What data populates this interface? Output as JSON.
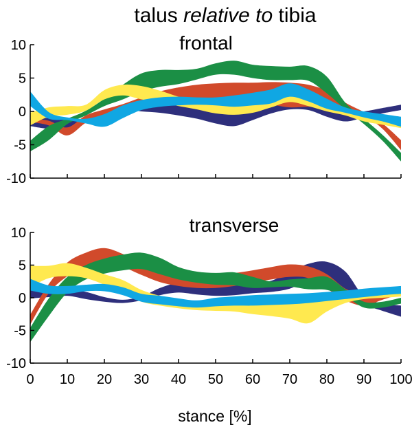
{
  "title": {
    "prefix": "talus ",
    "italic": "relative to",
    "suffix": " tibia"
  },
  "colors": {
    "navy": "#2e2f7c",
    "red": "#d14a2b",
    "green": "#1b8f45",
    "yellow": "#ffe94f",
    "cyan": "#10a7e3"
  },
  "chart_data": [
    {
      "type": "area",
      "title": "frontal",
      "xlabel": "",
      "ylabel": "",
      "xlim": [
        0,
        100
      ],
      "ylim": [
        -10,
        10
      ],
      "x_ticks": [
        0,
        10,
        20,
        30,
        40,
        50,
        60,
        70,
        80,
        90,
        100
      ],
      "y_ticks": [
        10,
        5,
        0,
        -5,
        -10
      ],
      "y_tick_labels": [
        "10",
        "5",
        "0",
        "-5",
        "-10"
      ],
      "grid": false,
      "x": [
        0,
        5,
        10,
        15,
        20,
        25,
        30,
        35,
        40,
        45,
        50,
        55,
        60,
        65,
        70,
        75,
        80,
        85,
        90,
        95,
        100
      ],
      "series": [
        {
          "color": "navy",
          "upper": [
            -0.9,
            -1.0,
            -1.3,
            -1.4,
            0.0,
            0.6,
            0.5,
            1.1,
            1.6,
            1.7,
            1.9,
            2.1,
            2.3,
            2.4,
            2.4,
            2.0,
            0.7,
            -0.2,
            0.0,
            0.5,
            1.0
          ],
          "lower": [
            -2.2,
            -2.6,
            -2.5,
            -1.5,
            -0.6,
            0.3,
            0.0,
            -0.2,
            -0.6,
            -1.1,
            -1.8,
            -2.2,
            -1.3,
            -0.3,
            0.3,
            0.2,
            -0.8,
            -1.5,
            -0.9,
            -0.3,
            0.2
          ]
        },
        {
          "color": "red",
          "upper": [
            -1.1,
            -1.4,
            -2.4,
            -0.6,
            0.3,
            1.1,
            2.1,
            3.0,
            3.6,
            4.0,
            4.2,
            4.3,
            4.3,
            4.4,
            4.3,
            4.0,
            3.1,
            1.3,
            -0.1,
            -1.8,
            -4.3
          ],
          "lower": [
            -1.6,
            -2.1,
            -3.6,
            -1.7,
            -0.5,
            0.3,
            1.2,
            1.7,
            1.5,
            1.6,
            1.6,
            1.5,
            1.2,
            1.0,
            0.6,
            0.7,
            0.6,
            0.1,
            -0.7,
            -2.6,
            -5.8
          ]
        },
        {
          "color": "green",
          "upper": [
            -4.4,
            -2.2,
            -1.1,
            0.1,
            1.9,
            4.0,
            5.7,
            6.2,
            6.2,
            6.4,
            7.2,
            7.6,
            7.0,
            6.8,
            6.7,
            6.8,
            5.2,
            1.3,
            -1.1,
            -3.5,
            -6.2
          ],
          "lower": [
            -6.0,
            -4.3,
            -1.9,
            -0.6,
            0.8,
            1.8,
            3.0,
            3.7,
            4.1,
            4.8,
            5.5,
            5.5,
            5.0,
            4.7,
            4.7,
            4.6,
            2.7,
            0.3,
            -1.9,
            -4.4,
            -7.5
          ]
        },
        {
          "color": "yellow",
          "upper": [
            -0.2,
            0.6,
            0.8,
            1.0,
            3.2,
            4.0,
            3.8,
            3.1,
            2.2,
            1.5,
            1.4,
            1.5,
            1.8,
            2.0,
            2.3,
            2.0,
            1.2,
            0.4,
            -0.5,
            -0.9,
            -1.2
          ],
          "lower": [
            -2.1,
            -0.8,
            -0.5,
            0.1,
            1.8,
            2.4,
            1.8,
            1.3,
            0.8,
            0.3,
            -0.3,
            -0.5,
            -0.2,
            0.6,
            1.4,
            0.8,
            0.0,
            -0.6,
            -1.5,
            -2.0,
            -2.5
          ]
        },
        {
          "color": "cyan",
          "upper": [
            3.0,
            -0.1,
            -0.9,
            -1.1,
            -0.4,
            0.9,
            1.7,
            2.1,
            2.2,
            2.1,
            2.1,
            2.4,
            2.8,
            3.3,
            4.2,
            3.3,
            1.9,
            0.6,
            0.0,
            -0.4,
            -0.8
          ],
          "lower": [
            0.8,
            -1.1,
            -1.3,
            -1.8,
            -2.3,
            -1.0,
            0.2,
            0.7,
            0.9,
            1.0,
            0.9,
            0.7,
            0.9,
            1.2,
            2.2,
            1.5,
            0.4,
            -0.2,
            -0.9,
            -1.5,
            -2.3
          ]
        }
      ]
    },
    {
      "type": "area",
      "title": "transverse",
      "xlabel": "stance [%]",
      "ylabel": "",
      "xlim": [
        0,
        100
      ],
      "ylim": [
        -10,
        10
      ],
      "x_ticks": [
        0,
        10,
        20,
        30,
        40,
        50,
        60,
        70,
        80,
        90,
        100
      ],
      "x_tick_labels": [
        "0",
        "10",
        "20",
        "30",
        "40",
        "50",
        "60",
        "70",
        "80",
        "90",
        "100"
      ],
      "y_ticks": [
        10,
        5,
        0,
        -5,
        -10
      ],
      "y_tick_labels": [
        "10",
        "5",
        "0",
        "-5",
        "-10"
      ],
      "grid": false,
      "x": [
        0,
        5,
        10,
        15,
        20,
        25,
        30,
        35,
        40,
        45,
        50,
        55,
        60,
        65,
        70,
        75,
        80,
        85,
        90,
        95,
        100
      ],
      "series": [
        {
          "color": "navy",
          "upper": [
            2.0,
            1.0,
            1.3,
            0.9,
            0.1,
            -0.3,
            0.2,
            1.5,
            2.3,
            2.3,
            2.3,
            2.5,
            2.3,
            2.6,
            4.0,
            5.2,
            5.5,
            4.0,
            0.2,
            -0.9,
            -1.2
          ],
          "lower": [
            -0.1,
            0.1,
            0.3,
            -0.2,
            -0.6,
            -0.8,
            -0.4,
            0.4,
            0.8,
            0.5,
            0.3,
            0.4,
            0.7,
            0.9,
            1.4,
            2.6,
            2.7,
            1.0,
            -1.0,
            -2.0,
            -2.9
          ]
        },
        {
          "color": "red",
          "upper": [
            -2.6,
            2.1,
            5.4,
            6.9,
            7.6,
            6.7,
            5.4,
            4.4,
            3.9,
            3.8,
            3.7,
            3.8,
            4.2,
            4.7,
            5.1,
            4.8,
            3.6,
            1.4,
            0.6,
            0.9,
            1.2
          ],
          "lower": [
            -4.1,
            0.7,
            3.3,
            4.9,
            5.3,
            4.7,
            3.5,
            2.4,
            1.8,
            1.5,
            1.5,
            1.8,
            2.3,
            2.8,
            3.2,
            3.0,
            1.4,
            -0.4,
            -1.2,
            -0.3,
            0.6
          ]
        },
        {
          "color": "green",
          "upper": [
            -4.6,
            -0.1,
            3.2,
            5.0,
            6.0,
            6.6,
            6.9,
            6.1,
            4.7,
            4.0,
            3.8,
            3.9,
            3.2,
            2.5,
            2.8,
            3.0,
            3.2,
            1.3,
            -0.6,
            -0.6,
            0.0
          ],
          "lower": [
            -6.8,
            -2.8,
            0.8,
            2.8,
            3.7,
            4.2,
            4.4,
            3.6,
            2.8,
            2.3,
            2.0,
            1.9,
            1.5,
            1.6,
            1.7,
            1.3,
            1.2,
            0.2,
            -1.5,
            -1.5,
            -0.9
          ]
        },
        {
          "color": "yellow",
          "upper": [
            4.9,
            4.9,
            5.3,
            4.6,
            3.6,
            2.7,
            1.2,
            0.3,
            -0.2,
            -0.5,
            -0.7,
            -0.8,
            -0.8,
            -0.9,
            -0.9,
            -0.7,
            -0.4,
            0.0,
            0.3,
            0.5,
            0.8
          ],
          "lower": [
            1.6,
            3.0,
            3.3,
            3.0,
            2.0,
            0.7,
            -0.6,
            -1.2,
            -1.6,
            -1.9,
            -2.0,
            -2.1,
            -2.5,
            -2.8,
            -3.2,
            -3.9,
            -2.1,
            -0.8,
            -0.2,
            0.0,
            0.2
          ]
        },
        {
          "color": "cyan",
          "upper": [
            2.9,
            1.9,
            1.8,
            2.0,
            2.1,
            1.6,
            0.6,
            0.3,
            -0.1,
            -0.4,
            0.0,
            0.2,
            0.4,
            0.5,
            0.6,
            0.7,
            0.9,
            1.1,
            1.4,
            1.6,
            1.8
          ],
          "lower": [
            1.1,
            0.6,
            0.6,
            1.0,
            1.0,
            0.4,
            -0.6,
            -1.0,
            -1.3,
            -1.5,
            -1.3,
            -1.2,
            -1.2,
            -1.1,
            -1.0,
            -0.8,
            -0.5,
            -0.2,
            0.1,
            0.4,
            0.6
          ]
        }
      ]
    }
  ]
}
